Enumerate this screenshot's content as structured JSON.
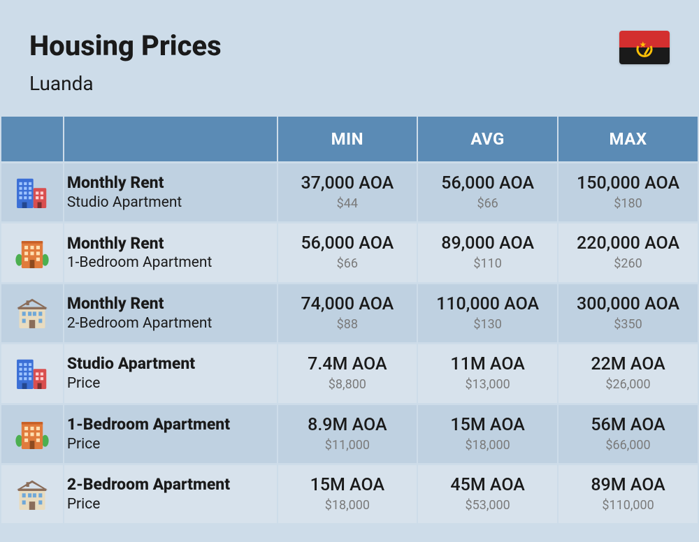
{
  "header": {
    "title": "Housing Prices",
    "subtitle": "Luanda"
  },
  "flag": {
    "top_color": "#d32f2f",
    "bottom_color": "#1a1a1a",
    "emblem_color": "#ffc107"
  },
  "columns": {
    "min": "MIN",
    "avg": "AVG",
    "max": "MAX"
  },
  "colors": {
    "page_bg": "#cddce9",
    "header_bg": "#5b8bb5",
    "header_text": "#ffffff",
    "row_even_bg": "#bfd1e1",
    "row_odd_bg": "#d7e2ec",
    "text_primary": "#1a1a1a",
    "text_secondary": "#7a7a7a"
  },
  "rows": [
    {
      "icon": "building-duo",
      "label_primary": "Monthly Rent",
      "label_secondary": "Studio Apartment",
      "min_primary": "37,000 AOA",
      "min_secondary": "$44",
      "avg_primary": "56,000 AOA",
      "avg_secondary": "$66",
      "max_primary": "150,000 AOA",
      "max_secondary": "$180"
    },
    {
      "icon": "building-orange",
      "label_primary": "Monthly Rent",
      "label_secondary": "1-Bedroom Apartment",
      "min_primary": "56,000 AOA",
      "min_secondary": "$66",
      "avg_primary": "89,000 AOA",
      "avg_secondary": "$110",
      "max_primary": "220,000 AOA",
      "max_secondary": "$260"
    },
    {
      "icon": "building-house",
      "label_primary": "Monthly Rent",
      "label_secondary": "2-Bedroom Apartment",
      "min_primary": "74,000 AOA",
      "min_secondary": "$88",
      "avg_primary": "110,000 AOA",
      "avg_secondary": "$130",
      "max_primary": "300,000 AOA",
      "max_secondary": "$350"
    },
    {
      "icon": "building-duo",
      "label_primary": "Studio Apartment",
      "label_secondary": "Price",
      "min_primary": "7.4M AOA",
      "min_secondary": "$8,800",
      "avg_primary": "11M AOA",
      "avg_secondary": "$13,000",
      "max_primary": "22M AOA",
      "max_secondary": "$26,000"
    },
    {
      "icon": "building-orange",
      "label_primary": "1-Bedroom Apartment",
      "label_secondary": "Price",
      "min_primary": "8.9M AOA",
      "min_secondary": "$11,000",
      "avg_primary": "15M AOA",
      "avg_secondary": "$18,000",
      "max_primary": "56M AOA",
      "max_secondary": "$66,000"
    },
    {
      "icon": "building-house",
      "label_primary": "2-Bedroom Apartment",
      "label_secondary": "Price",
      "min_primary": "15M AOA",
      "min_secondary": "$18,000",
      "avg_primary": "45M AOA",
      "avg_secondary": "$53,000",
      "max_primary": "89M AOA",
      "max_secondary": "$110,000"
    }
  ]
}
